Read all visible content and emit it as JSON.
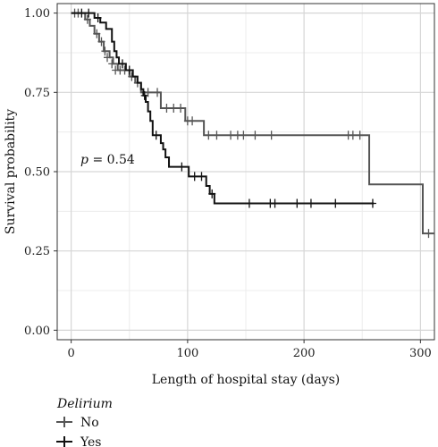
{
  "chart_data": {
    "type": "line",
    "subtype": "kaplan-meier",
    "title": "",
    "xlabel": "Length of hospital stay (days)",
    "ylabel": "Survival probability",
    "xlim": [
      -12,
      312
    ],
    "ylim": [
      -0.03,
      1.03
    ],
    "x_ticks": [
      0,
      100,
      200,
      300
    ],
    "x_tick_labels": [
      "0",
      "100",
      "200",
      "300"
    ],
    "y_ticks": [
      0,
      0.25,
      0.5,
      0.75,
      1.0
    ],
    "y_tick_labels": [
      "0.00",
      "0.25",
      "0.50",
      "0.75",
      "1.00"
    ],
    "grid": true,
    "annotation": {
      "label": "p",
      "text": " = 0.54",
      "x": 8,
      "y": 0.54
    },
    "legend": {
      "title": "Delirium",
      "placement": "bottom-left",
      "entries": [
        "No",
        "Yes"
      ]
    },
    "series": [
      {
        "name": "No",
        "color": "#555555",
        "steps": [
          [
            0,
            1.0
          ],
          [
            12,
            0.98
          ],
          [
            16,
            0.96
          ],
          [
            20,
            0.935
          ],
          [
            24,
            0.91
          ],
          [
            28,
            0.88
          ],
          [
            33,
            0.86
          ],
          [
            36,
            0.84
          ],
          [
            40,
            0.82
          ],
          [
            50,
            0.8
          ],
          [
            55,
            0.78
          ],
          [
            60,
            0.75
          ],
          [
            77,
            0.7
          ],
          [
            98,
            0.66
          ],
          [
            114,
            0.615
          ],
          [
            256,
            0.46
          ],
          [
            302,
            0.305
          ],
          [
            312,
            0.305
          ]
        ],
        "censored": [
          [
            3,
            1.0
          ],
          [
            6,
            1.0
          ],
          [
            14,
            0.98
          ],
          [
            22,
            0.935
          ],
          [
            26,
            0.91
          ],
          [
            29,
            0.88
          ],
          [
            31,
            0.86
          ],
          [
            35,
            0.84
          ],
          [
            38,
            0.82
          ],
          [
            42,
            0.82
          ],
          [
            46,
            0.82
          ],
          [
            52,
            0.8
          ],
          [
            57,
            0.78
          ],
          [
            66,
            0.75
          ],
          [
            74,
            0.75
          ],
          [
            82,
            0.7
          ],
          [
            88,
            0.7
          ],
          [
            94,
            0.7
          ],
          [
            100,
            0.66
          ],
          [
            104,
            0.66
          ],
          [
            118,
            0.615
          ],
          [
            125,
            0.615
          ],
          [
            137,
            0.615
          ],
          [
            143,
            0.615
          ],
          [
            148,
            0.615
          ],
          [
            158,
            0.615
          ],
          [
            172,
            0.615
          ],
          [
            238,
            0.615
          ],
          [
            242,
            0.615
          ],
          [
            248,
            0.615
          ],
          [
            307,
            0.305
          ]
        ]
      },
      {
        "name": "Yes",
        "color": "#111111",
        "steps": [
          [
            0,
            1.0
          ],
          [
            20,
            0.985
          ],
          [
            25,
            0.97
          ],
          [
            30,
            0.95
          ],
          [
            35,
            0.91
          ],
          [
            37,
            0.88
          ],
          [
            39,
            0.86
          ],
          [
            41,
            0.84
          ],
          [
            47,
            0.82
          ],
          [
            53,
            0.8
          ],
          [
            57,
            0.78
          ],
          [
            60,
            0.76
          ],
          [
            62,
            0.74
          ],
          [
            64,
            0.72
          ],
          [
            66,
            0.69
          ],
          [
            68,
            0.66
          ],
          [
            70,
            0.615
          ],
          [
            77,
            0.59
          ],
          [
            79,
            0.57
          ],
          [
            81,
            0.545
          ],
          [
            84,
            0.515
          ],
          [
            101,
            0.485
          ],
          [
            116,
            0.455
          ],
          [
            119,
            0.43
          ],
          [
            123,
            0.4
          ],
          [
            260,
            0.4
          ]
        ],
        "censored": [
          [
            9,
            1.0
          ],
          [
            15,
            1.0
          ],
          [
            23,
            0.985
          ],
          [
            44,
            0.84
          ],
          [
            50,
            0.82
          ],
          [
            63,
            0.74
          ],
          [
            73,
            0.615
          ],
          [
            95,
            0.515
          ],
          [
            106,
            0.485
          ],
          [
            112,
            0.485
          ],
          [
            121,
            0.43
          ],
          [
            153,
            0.4
          ],
          [
            171,
            0.4
          ],
          [
            175,
            0.4
          ],
          [
            194,
            0.4
          ],
          [
            206,
            0.4
          ],
          [
            227,
            0.4
          ],
          [
            259,
            0.4
          ]
        ]
      }
    ]
  }
}
